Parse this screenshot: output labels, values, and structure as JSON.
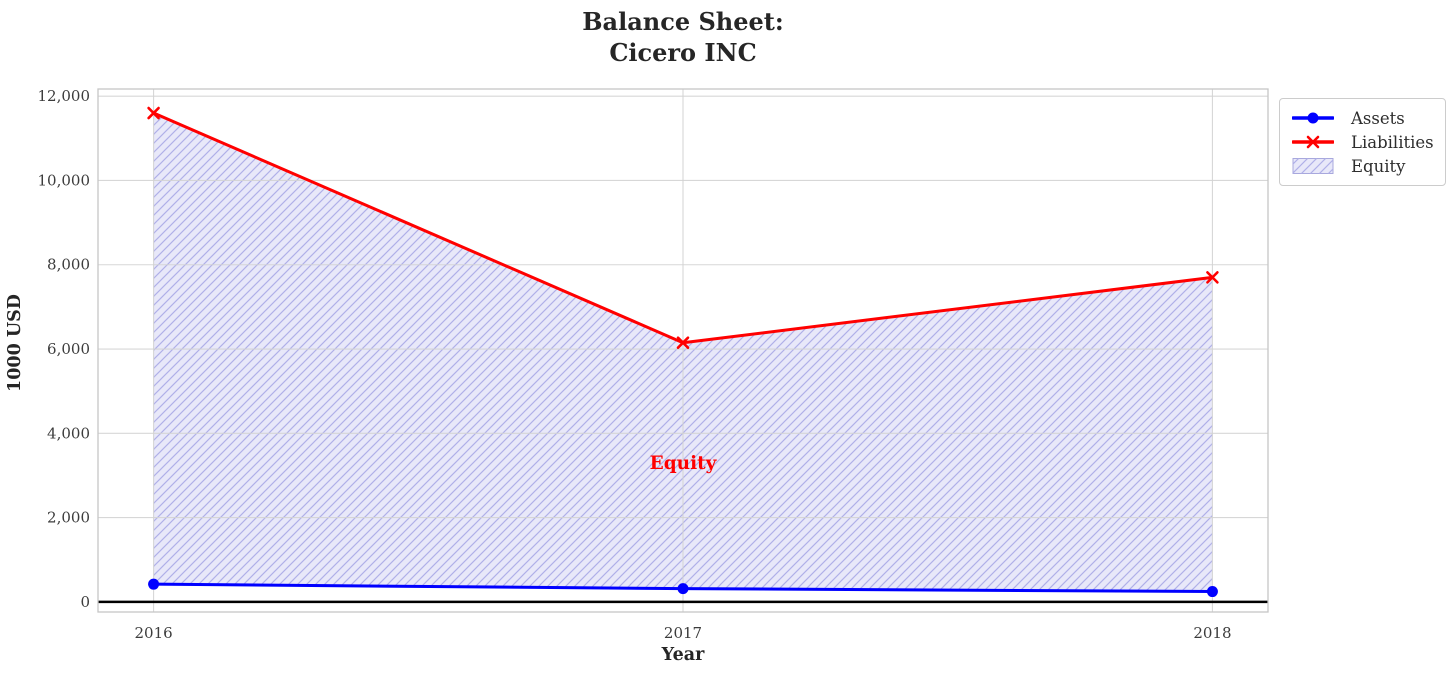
{
  "figure": {
    "title_lines": [
      "Balance Sheet:",
      "Cicero INC"
    ]
  },
  "chart_data": {
    "type": "line",
    "title": "Balance Sheet:\nCicero INC",
    "xlabel": "Year",
    "ylabel": "1000 USD",
    "x": [
      2016,
      2017,
      2018
    ],
    "xtick_labels": [
      "2016",
      "2017",
      "2018"
    ],
    "yticks": [
      0,
      2000,
      4000,
      6000,
      8000,
      10000,
      12000
    ],
    "ytick_labels": [
      "0",
      "2,000",
      "4,000",
      "6,000",
      "8,000",
      "10,000",
      "12,000"
    ],
    "xlim": [
      2015.895,
      2018.105
    ],
    "ylim": [
      -240,
      12170
    ],
    "grid": true,
    "zero_line": {
      "y": 0,
      "color": "#000000"
    },
    "series": [
      {
        "name": "Assets",
        "values": [
          420,
          315,
          245
        ],
        "color": "#0000ff",
        "marker": "circle",
        "line_width": 3
      },
      {
        "name": "Liabilities",
        "values": [
          11600,
          6150,
          7700
        ],
        "color": "#ff0000",
        "marker": "x",
        "line_width": 3
      }
    ],
    "area": {
      "name": "Equity",
      "between": [
        "Assets",
        "Liabilities"
      ],
      "fill_color": "#e8e8f9",
      "hatch": "/",
      "hatch_color": "#b0b0e8",
      "edge_color": "#a8a8dd"
    },
    "annotation": {
      "text": "Equity",
      "x": 2017,
      "y": 3300,
      "color": "#ff0000"
    },
    "legend": {
      "position": "upper-right-outside",
      "entries": [
        "Assets",
        "Liabilities",
        "Equity"
      ]
    }
  },
  "colors": {
    "grid": "#d3d3d3",
    "spine": "#c6c6c6",
    "tick_text": "#3c3c3c",
    "title_text": "#262626"
  }
}
